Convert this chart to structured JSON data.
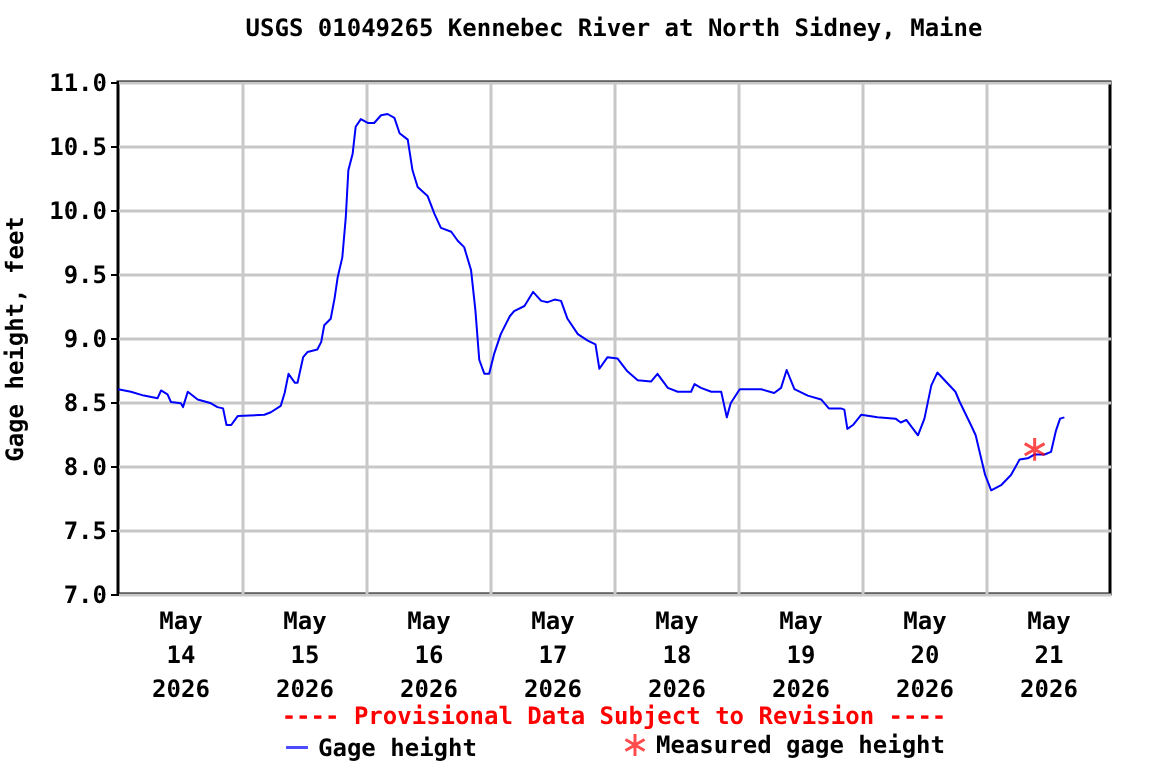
{
  "chart_data": {
    "type": "line",
    "title": "USGS 01049265 Kennebec River at North Sidney, Maine",
    "ylabel": "Gage height, feet",
    "annotations": [
      "---- Provisional Data Subject to Revision ----"
    ],
    "xlim": [
      "2026-05-14T00:00",
      "2026-05-22T00:00"
    ],
    "xticks": [
      {
        "value": "2026-05-14T12:00",
        "label": "May 14 2026"
      },
      {
        "value": "2026-05-15T00:00",
        "label": null
      },
      {
        "value": "2026-05-15T12:00",
        "label": "May 15 2026"
      },
      {
        "value": "2026-05-16T00:00",
        "label": null
      },
      {
        "value": "2026-05-16T12:00",
        "label": "May 16 2026"
      },
      {
        "value": "2026-05-17T00:00",
        "label": null
      },
      {
        "value": "2026-05-17T12:00",
        "label": "May 17 2026"
      },
      {
        "value": "2026-05-18T00:00",
        "label": null
      },
      {
        "value": "2026-05-18T12:00",
        "label": "May 18 2026"
      },
      {
        "value": "2026-05-19T00:00",
        "label": null
      },
      {
        "value": "2026-05-19T12:00",
        "label": "May 19 2026"
      },
      {
        "value": "2026-05-20T00:00",
        "label": null
      },
      {
        "value": "2026-05-20T12:00",
        "label": "May 20 2026"
      },
      {
        "value": "2026-05-21T00:00",
        "label": null
      },
      {
        "value": "2026-05-21T12:00",
        "label": "May 21 2026"
      }
    ],
    "ylim": [
      7,
      11
    ],
    "yticks": [
      {
        "value": 7,
        "label": "7.0"
      },
      {
        "value": 7.5,
        "label": "7.5"
      },
      {
        "value": 8,
        "label": "8.0"
      },
      {
        "value": 8.5,
        "label": "8.5"
      },
      {
        "value": 9,
        "label": "9.0"
      },
      {
        "value": 9.5,
        "label": "9.5"
      },
      {
        "value": 10,
        "label": "10.0"
      },
      {
        "value": 10.5,
        "label": "10.5"
      },
      {
        "value": 11,
        "label": "11.0"
      }
    ],
    "grid": true,
    "legend": "bottom",
    "series": [
      {
        "name": "Gage height",
        "type": "line",
        "color": "#0000ff",
        "marker": "none",
        "x": [
          "2026-05-14T00:00",
          "2026-05-14T02:30",
          "2026-05-14T05:00",
          "2026-05-14T07:40",
          "2026-05-14T08:20",
          "2026-05-14T09:35",
          "2026-05-14T10:15",
          "2026-05-14T12:10",
          "2026-05-14T12:35",
          "2026-05-14T13:30",
          "2026-05-14T15:25",
          "2026-05-14T18:00",
          "2026-05-14T19:15",
          "2026-05-14T20:20",
          "2026-05-14T21:00",
          "2026-05-14T21:55",
          "2026-05-14T23:10",
          "2026-05-15T04:20",
          "2026-05-15T05:35",
          "2026-05-15T07:30",
          "2026-05-15T08:15",
          "2026-05-15T09:00",
          "2026-05-15T10:15",
          "2026-05-15T10:45",
          "2026-05-15T11:50",
          "2026-05-15T12:40",
          "2026-05-15T14:35",
          "2026-05-15T15:20",
          "2026-05-15T15:55",
          "2026-05-15T17:10",
          "2026-05-15T17:55",
          "2026-05-15T18:30",
          "2026-05-15T19:25",
          "2026-05-15T20:05",
          "2026-05-15T20:35",
          "2026-05-15T21:25",
          "2026-05-15T22:00",
          "2026-05-15T23:00",
          "2026-05-16T00:20",
          "2026-05-16T01:35",
          "2026-05-16T02:55",
          "2026-05-16T04:10",
          "2026-05-16T05:30",
          "2026-05-16T06:30",
          "2026-05-16T08:05",
          "2026-05-16T09:00",
          "2026-05-16T10:00",
          "2026-05-16T11:55",
          "2026-05-16T13:15",
          "2026-05-16T14:30",
          "2026-05-16T16:30",
          "2026-05-16T17:45",
          "2026-05-16T19:00",
          "2026-05-16T20:20",
          "2026-05-16T21:10",
          "2026-05-16T21:55",
          "2026-05-16T22:55",
          "2026-05-16T23:50",
          "2026-05-17T00:50",
          "2026-05-17T02:05",
          "2026-05-17T03:50",
          "2026-05-17T04:40",
          "2026-05-17T06:40",
          "2026-05-17T08:20",
          "2026-05-17T09:55",
          "2026-05-17T11:10",
          "2026-05-17T12:30",
          "2026-05-17T13:45",
          "2026-05-17T15:00",
          "2026-05-17T17:00",
          "2026-05-17T18:55",
          "2026-05-17T20:25",
          "2026-05-17T21:10",
          "2026-05-17T22:45",
          "2026-05-18T00:40",
          "2026-05-18T02:35",
          "2026-05-18T04:35",
          "2026-05-18T07:10",
          "2026-05-18T08:25",
          "2026-05-18T10:25",
          "2026-05-18T12:20",
          "2026-05-18T14:55",
          "2026-05-18T15:35",
          "2026-05-18T16:50",
          "2026-05-18T18:50",
          "2026-05-18T20:45",
          "2026-05-18T21:50",
          "2026-05-18T22:35",
          "2026-05-19T00:20",
          "2026-05-19T04:30",
          "2026-05-19T07:00",
          "2026-05-19T08:20",
          "2026-05-19T09:25",
          "2026-05-19T10:55",
          "2026-05-19T13:30",
          "2026-05-19T16:05",
          "2026-05-19T17:35",
          "2026-05-19T19:55",
          "2026-05-19T20:35",
          "2026-05-19T21:10",
          "2026-05-19T22:15",
          "2026-05-19T23:50",
          "2026-05-20T03:00",
          "2026-05-20T06:30",
          "2026-05-20T07:30",
          "2026-05-20T08:35",
          "2026-05-20T10:50",
          "2026-05-20T12:05",
          "2026-05-20T13:25",
          "2026-05-20T14:35",
          "2026-05-20T18:05",
          "2026-05-20T18:55",
          "2026-05-20T21:05",
          "2026-05-20T22:00",
          "2026-05-20T23:00",
          "2026-05-20T23:50",
          "2026-05-21T01:00",
          "2026-05-21T02:55",
          "2026-05-21T04:50",
          "2026-05-21T06:30",
          "2026-05-21T08:05",
          "2026-05-21T09:25",
          "2026-05-21T11:20",
          "2026-05-21T12:35",
          "2026-05-21T13:30",
          "2026-05-21T14:20",
          "2026-05-21T15:10"
        ],
        "values": [
          8.6,
          8.58,
          8.55,
          8.53,
          8.59,
          8.56,
          8.5,
          8.49,
          8.46,
          8.58,
          8.52,
          8.49,
          8.46,
          8.45,
          8.32,
          8.32,
          8.39,
          8.4,
          8.42,
          8.47,
          8.57,
          8.72,
          8.65,
          8.65,
          8.85,
          8.89,
          8.91,
          8.97,
          9.1,
          9.15,
          9.31,
          9.47,
          9.63,
          9.94,
          10.31,
          10.44,
          10.65,
          10.71,
          10.68,
          10.68,
          10.74,
          10.75,
          10.72,
          10.6,
          10.55,
          10.31,
          10.18,
          10.11,
          9.97,
          9.86,
          9.83,
          9.76,
          9.71,
          9.53,
          9.22,
          8.83,
          8.72,
          8.72,
          8.88,
          9.03,
          9.17,
          9.21,
          9.25,
          9.36,
          9.29,
          9.28,
          9.3,
          9.29,
          9.15,
          9.03,
          8.98,
          8.95,
          8.76,
          8.85,
          8.84,
          8.74,
          8.67,
          8.66,
          8.72,
          8.61,
          8.58,
          8.58,
          8.64,
          8.61,
          8.58,
          8.58,
          8.38,
          8.49,
          8.6,
          8.6,
          8.57,
          8.61,
          8.75,
          8.6,
          8.55,
          8.52,
          8.45,
          8.45,
          8.44,
          8.29,
          8.32,
          8.4,
          8.38,
          8.37,
          8.34,
          8.36,
          8.24,
          8.37,
          8.63,
          8.73,
          8.58,
          8.5,
          8.32,
          8.24,
          8.07,
          7.93,
          7.81,
          7.85,
          7.93,
          8.05,
          8.06,
          8.09,
          8.09,
          8.11,
          8.27,
          8.37,
          8.38
        ]
      },
      {
        "name": "Measured gage height",
        "type": "scatter",
        "color": "#ff0000",
        "marker": "cross",
        "x": [
          "2026-05-21T09:25"
        ],
        "values": [
          8.13
        ]
      }
    ]
  }
}
